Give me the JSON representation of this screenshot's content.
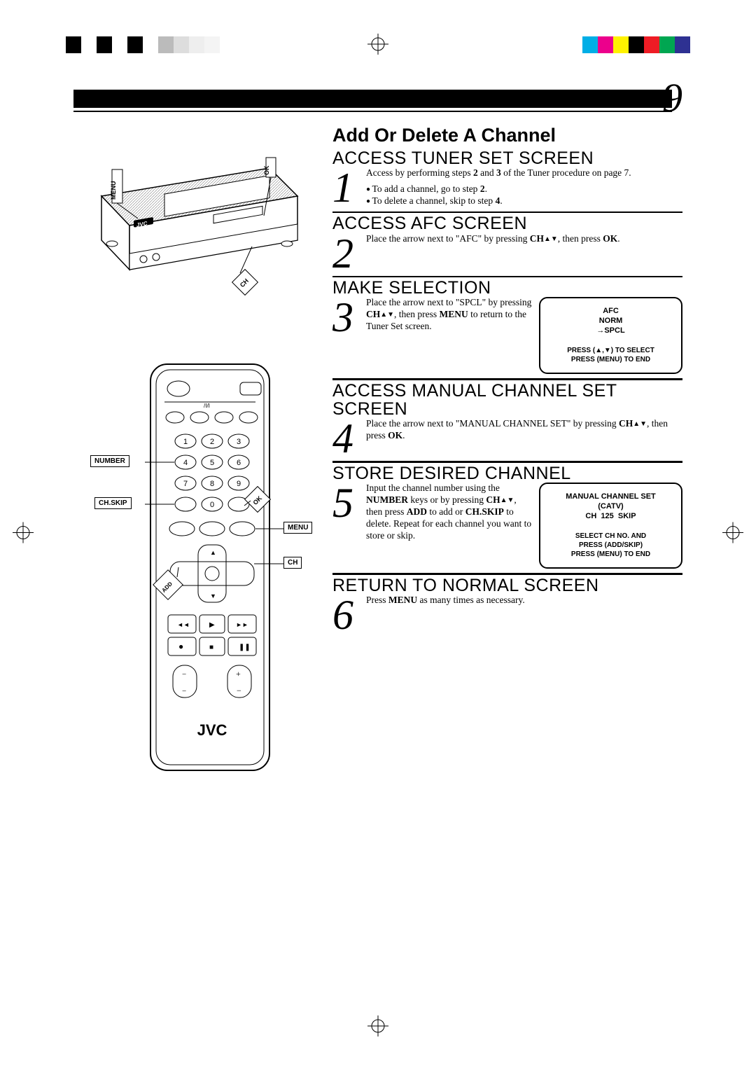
{
  "page_number": "9",
  "main_title": "Add Or Delete A Channel",
  "reg_colors_left": [
    "#000",
    "#fff",
    "#000",
    "#fff",
    "#000",
    "#fff",
    "#bbb",
    "#ddd",
    "#eee",
    "#f4f4f4"
  ],
  "reg_colors_right": [
    "#00aee6",
    "#ec008c",
    "#fff200",
    "#000",
    "#ee1c25",
    "#00a651",
    "#2e3192"
  ],
  "callouts": {
    "number": "NUMBER",
    "chskip": "CH.SKIP",
    "menu": "MENU",
    "ch": "CH",
    "add": "ADD",
    "ok": "OK",
    "menu_v": "MENU",
    "ok_v": "OK",
    "ch_v": "CH"
  },
  "brand": "JVC",
  "steps": [
    {
      "n": "1",
      "heading": "ACCESS TUNER SET SCREEN",
      "body_html": "Access by performing steps <b>2</b> and <b>3</b> of the Tuner procedure on page 7.",
      "bullets": [
        "To add a channel, go to step <b>2</b>.",
        "To delete a channel, skip to step <b>4</b>."
      ]
    },
    {
      "n": "2",
      "heading": "ACCESS AFC SCREEN",
      "body_html": "Place the arrow next to \"AFC\" by pressing <b>CH</b><span class='tri'>▲▼</span>, then press <b>OK</b>."
    },
    {
      "n": "3",
      "heading": "MAKE SELECTION",
      "body_html": "Place the arrow next to \"SPCL\" by pressing <b>CH</b><span class='tri'>▲▼</span>, then press <b>MENU</b> to return to the Tuner Set screen.",
      "osd": {
        "title": "AFC",
        "lines": [
          "NORM",
          "→SPCL"
        ],
        "footer": [
          "PRESS (▲,▼) TO SELECT",
          "PRESS (MENU) TO END"
        ]
      }
    },
    {
      "n": "4",
      "heading": "ACCESS MANUAL CHANNEL SET SCREEN",
      "body_html": "Place the arrow next to \"MANUAL CHANNEL SET\" by pressing <b>CH</b><span class='tri'>▲▼</span>, then press <b>OK</b>."
    },
    {
      "n": "5",
      "heading": "STORE DESIRED CHANNEL",
      "body_html": "Input the channel number using the <b>NUMBER</b> keys or by pressing <b>CH</b><span class='tri'>▲▼</span>, then press <b>ADD</b> to add or <b>CH.SKIP</b> to delete. Repeat for each channel you want to store or skip.",
      "osd": {
        "title": "MANUAL CHANNEL SET",
        "lines": [
          "(CATV)",
          "CH&nbsp;&nbsp;125&nbsp;&nbsp;SKIP"
        ],
        "footer": [
          "SELECT CH NO. AND",
          "PRESS (ADD/SKIP)",
          "PRESS (MENU) TO END"
        ]
      }
    },
    {
      "n": "6",
      "heading": "RETURN TO NORMAL SCREEN",
      "body_html": "Press <b>MENU</b> as many times as necessary."
    }
  ]
}
